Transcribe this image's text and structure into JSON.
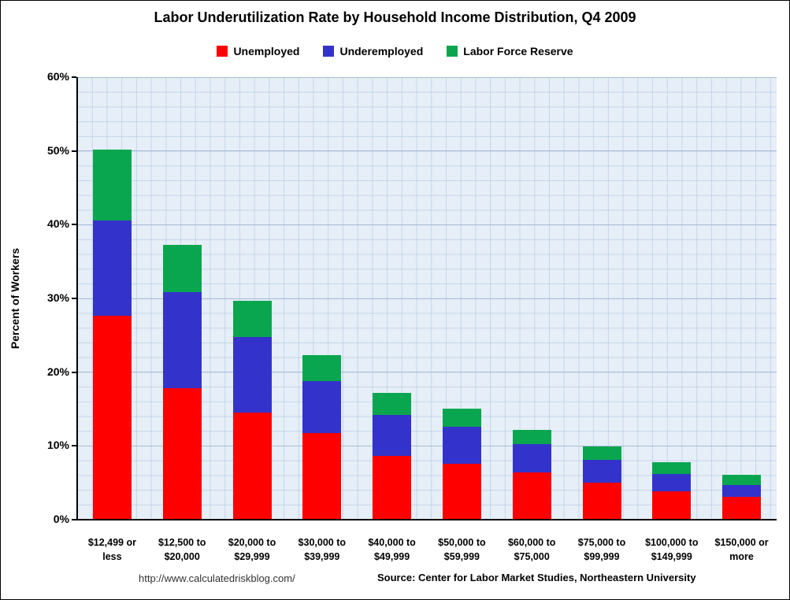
{
  "chart_data": {
    "type": "bar",
    "stacked": true,
    "title": "Labor Underutilization Rate by Household Income Distribution, Q4 2009",
    "ylabel": "Percent of Workers",
    "xlabel": "",
    "ylim": [
      0,
      60
    ],
    "ytick_step": 10,
    "ytick_labels": [
      "0%",
      "10%",
      "20%",
      "30%",
      "40%",
      "50%",
      "60%"
    ],
    "grid": true,
    "legend_position": "top",
    "categories": [
      "$12,499 or\nless",
      "$12,500 to\n$20,000",
      "$20,000 to\n$29,999",
      "$30,000 to\n$39,999",
      "$40,000 to\n$49,999",
      "$50,000 to\n$59,999",
      "$60,000 to\n$75,000",
      "$75,000 to\n$99,999",
      "$100,000 to\n$149,999",
      "$150,000 or\nmore"
    ],
    "series": [
      {
        "name": "Unemployed",
        "color": "#FE0000",
        "values": [
          27.7,
          17.8,
          14.5,
          11.7,
          8.6,
          7.6,
          6.4,
          5.0,
          3.8,
          3.1
        ]
      },
      {
        "name": "Underemployed",
        "color": "#3333CC",
        "values": [
          12.9,
          13.1,
          10.3,
          7.1,
          5.6,
          5.0,
          3.9,
          3.1,
          2.4,
          1.6
        ]
      },
      {
        "name": "Labor Force Reserve",
        "color": "#0AA64F",
        "values": [
          9.6,
          6.4,
          4.9,
          3.5,
          3.0,
          2.5,
          1.9,
          1.8,
          1.6,
          1.4
        ]
      }
    ]
  },
  "footer": {
    "url": "http://www.calculatedriskblog.com/",
    "source": "Source: Center for Labor Market Studies, Northeastern University"
  }
}
